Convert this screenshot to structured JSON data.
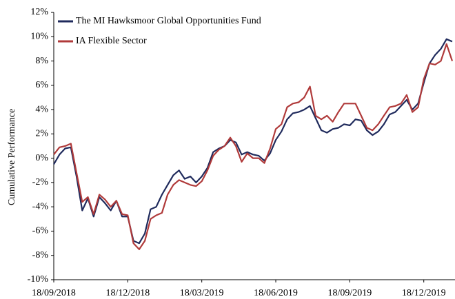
{
  "chart_data": {
    "type": "line",
    "y_label": "Cumulative Performance",
    "categories": [
      "18/09/2018",
      null,
      null,
      null,
      null,
      null,
      null,
      null,
      null,
      null,
      null,
      null,
      null,
      "18/12/2018",
      null,
      null,
      null,
      null,
      null,
      null,
      null,
      null,
      null,
      null,
      null,
      null,
      "18/03/2019",
      null,
      null,
      null,
      null,
      null,
      null,
      null,
      null,
      null,
      null,
      null,
      null,
      "18/06/2019",
      null,
      null,
      null,
      null,
      null,
      null,
      null,
      null,
      null,
      null,
      null,
      null,
      "18/09/2019",
      null,
      null,
      null,
      null,
      null,
      null,
      null,
      null,
      null,
      null,
      null,
      null,
      "18/12/2019",
      null,
      null,
      null,
      null,
      null
    ],
    "series": [
      {
        "name": "The MI Hawksmoor Global Opportunities Fund",
        "color": "#1f2a5c",
        "values": [
          -0.5,
          0.3,
          0.8,
          0.9,
          -1.5,
          -4.3,
          -3.3,
          -4.8,
          -3.2,
          -3.7,
          -4.3,
          -3.5,
          -4.8,
          -4.8,
          -6.8,
          -7.0,
          -6.2,
          -4.2,
          -4.0,
          -3.0,
          -2.2,
          -1.4,
          -1.0,
          -1.7,
          -1.5,
          -2.0,
          -1.5,
          -0.8,
          0.5,
          0.8,
          1.0,
          1.5,
          1.3,
          0.3,
          0.5,
          0.3,
          0.2,
          -0.2,
          0.4,
          1.5,
          2.2,
          3.2,
          3.7,
          3.8,
          4.0,
          4.3,
          3.3,
          2.3,
          2.1,
          2.4,
          2.5,
          2.8,
          2.7,
          3.2,
          3.1,
          2.3,
          1.9,
          2.2,
          2.8,
          3.6,
          3.8,
          4.3,
          4.8,
          4.0,
          4.5,
          6.2,
          7.8,
          8.5,
          9.0,
          9.8,
          9.6
        ]
      },
      {
        "name": "IA Flexible Sector",
        "color": "#b03a3a",
        "values": [
          0.3,
          0.9,
          1.0,
          1.2,
          -1.2,
          -3.6,
          -3.2,
          -4.6,
          -3.0,
          -3.4,
          -4.0,
          -3.5,
          -4.6,
          -4.7,
          -7.0,
          -7.5,
          -6.8,
          -5.0,
          -4.7,
          -4.5,
          -3.0,
          -2.2,
          -1.8,
          -2.0,
          -2.2,
          -2.3,
          -1.9,
          -1.0,
          0.2,
          0.7,
          1.0,
          1.7,
          1.0,
          -0.3,
          0.4,
          0.0,
          0.0,
          -0.4,
          0.8,
          2.4,
          2.8,
          4.2,
          4.5,
          4.6,
          5.0,
          5.9,
          3.5,
          3.2,
          3.5,
          3.0,
          3.8,
          4.5,
          4.5,
          4.5,
          3.5,
          2.5,
          2.3,
          2.8,
          3.5,
          4.2,
          4.3,
          4.5,
          5.2,
          3.8,
          4.2,
          6.5,
          7.8,
          7.7,
          8.0,
          9.4,
          8.0
        ]
      }
    ],
    "ylim": [
      -10,
      12
    ],
    "yticks": [
      {
        "value": -10,
        "label": "-10%"
      },
      {
        "value": -8,
        "label": "-8%"
      },
      {
        "value": -6,
        "label": "-6%"
      },
      {
        "value": -4,
        "label": "-4%"
      },
      {
        "value": -2,
        "label": "-2%"
      },
      {
        "value": 0,
        "label": "0%"
      },
      {
        "value": 2,
        "label": "2%"
      },
      {
        "value": 4,
        "label": "4%"
      },
      {
        "value": 6,
        "label": "6%"
      },
      {
        "value": 8,
        "label": "8%"
      },
      {
        "value": 10,
        "label": "10%"
      },
      {
        "value": 12,
        "label": "12%"
      }
    ],
    "grid": false,
    "legend": "upper left"
  }
}
